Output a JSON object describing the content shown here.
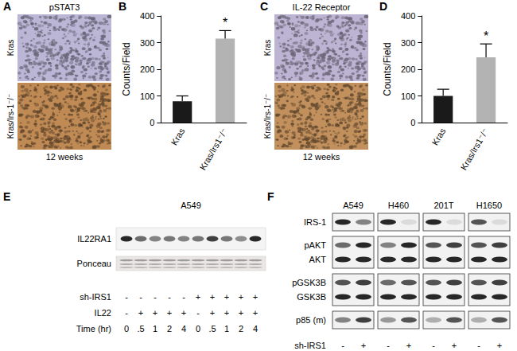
{
  "panels": [
    {
      "panel": "A",
      "type": "ihc",
      "title": "pSTAT3",
      "rows": [
        "Kras",
        "Kras/Irs-1⁻/⁻"
      ],
      "caption": "12 weeks",
      "colors": [
        "#bcb6d6",
        "#c08a55"
      ]
    },
    {
      "panel": "C",
      "type": "ihc",
      "title": "IL-22 Receptor",
      "rows": [
        "Kras",
        "Kras/Irs-1⁻/⁻"
      ],
      "caption": "12 weeks",
      "colors": [
        "#bdb4d3",
        "#c2905c"
      ]
    },
    {
      "panel": "E",
      "type": "blot",
      "title": "A549",
      "rows": [
        {
          "name": "IL22RA1",
          "bands": [
            0.9,
            0.6,
            0.5,
            0.55,
            0.5,
            0.55,
            0.8,
            0.55,
            0.45,
            0.9
          ]
        },
        {
          "name": "Ponceau",
          "bands": [
            0.35,
            0.35,
            0.35,
            0.35,
            0.35,
            0.35,
            0.35,
            0.35,
            0.35,
            0.35
          ]
        }
      ],
      "conditions": [
        {
          "name": "sh-IRS1",
          "values": [
            "-",
            "-",
            "-",
            "-",
            "-",
            "+",
            "+",
            "+",
            "+",
            "+"
          ]
        },
        {
          "name": "IL22",
          "values": [
            "-",
            "+",
            "+",
            "+",
            "+",
            "-",
            "+",
            "+",
            "+",
            "+"
          ]
        },
        {
          "name": "Time (hr)",
          "values": [
            "0",
            ".5",
            "1",
            "2",
            "4",
            "0",
            ".5",
            "1",
            "2",
            "4"
          ]
        }
      ]
    },
    {
      "panel": "F",
      "type": "blot",
      "groups": [
        "A549",
        "H460",
        "201T",
        "H1650"
      ],
      "blocks": [
        [
          {
            "name": "IRS-1",
            "bands": [
              [
                0.9,
                0.5
              ],
              [
                0.9,
                0.1
              ],
              [
                0.9,
                0.1
              ],
              [
                0.7,
                0.1
              ]
            ]
          }
        ],
        [
          {
            "name": "pAKT",
            "bands": [
              [
                0.6,
                0.9
              ],
              [
                0.5,
                0.9
              ],
              [
                0.7,
                0.8
              ],
              [
                0.7,
                0.8
              ]
            ]
          },
          {
            "name": "AKT",
            "bands": [
              [
                0.9,
                0.9
              ],
              [
                0.9,
                0.9
              ],
              [
                0.9,
                0.9
              ],
              [
                0.9,
                0.9
              ]
            ]
          }
        ],
        [
          {
            "name": "pGSK3B",
            "bands": [
              [
                0.7,
                0.8
              ],
              [
                0.6,
                0.7
              ],
              [
                0.7,
                0.8
              ],
              [
                0.7,
                0.8
              ]
            ]
          },
          {
            "name": "GSK3B",
            "bands": [
              [
                0.9,
                0.9
              ],
              [
                0.9,
                0.9
              ],
              [
                0.9,
                0.9
              ],
              [
                0.9,
                0.9
              ]
            ]
          }
        ],
        [
          {
            "name": "p85 (m)",
            "bands": [
              [
                0.5,
                0.8
              ],
              [
                0.4,
                0.7
              ],
              [
                0.3,
                0.7
              ],
              [
                0.3,
                0.7
              ]
            ]
          }
        ]
      ],
      "conditions": [
        {
          "name": "sh-IRS1",
          "values": [
            "-",
            "+"
          ]
        }
      ]
    }
  ],
  "chart_data": [
    {
      "panel": "B",
      "type": "bar",
      "y_label": "Counts/Field",
      "categories": [
        "Kras",
        "Kras/Irs1⁻/⁻"
      ],
      "values": [
        80,
        315
      ],
      "errors": [
        20,
        30
      ],
      "colors": [
        "#1a1a1a",
        "#b3b3b3"
      ],
      "ylim": [
        0,
        400
      ],
      "yticks": [
        0,
        100,
        200,
        300,
        400
      ],
      "grid": false,
      "annotations": [
        {
          "category": "Kras/Irs1⁻/⁻",
          "text": "*"
        }
      ]
    },
    {
      "panel": "D",
      "type": "bar",
      "y_label": "Counts/Field",
      "categories": [
        "Kras",
        "Kras/Irs1⁻/⁻"
      ],
      "values": [
        100,
        245
      ],
      "errors": [
        25,
        50
      ],
      "colors": [
        "#1a1a1a",
        "#b3b3b3"
      ],
      "ylim": [
        0,
        400
      ],
      "yticks": [
        0,
        100,
        200,
        300,
        400
      ],
      "grid": false,
      "annotations": [
        {
          "category": "Kras/Irs1⁻/⁻",
          "text": "*"
        }
      ]
    }
  ]
}
